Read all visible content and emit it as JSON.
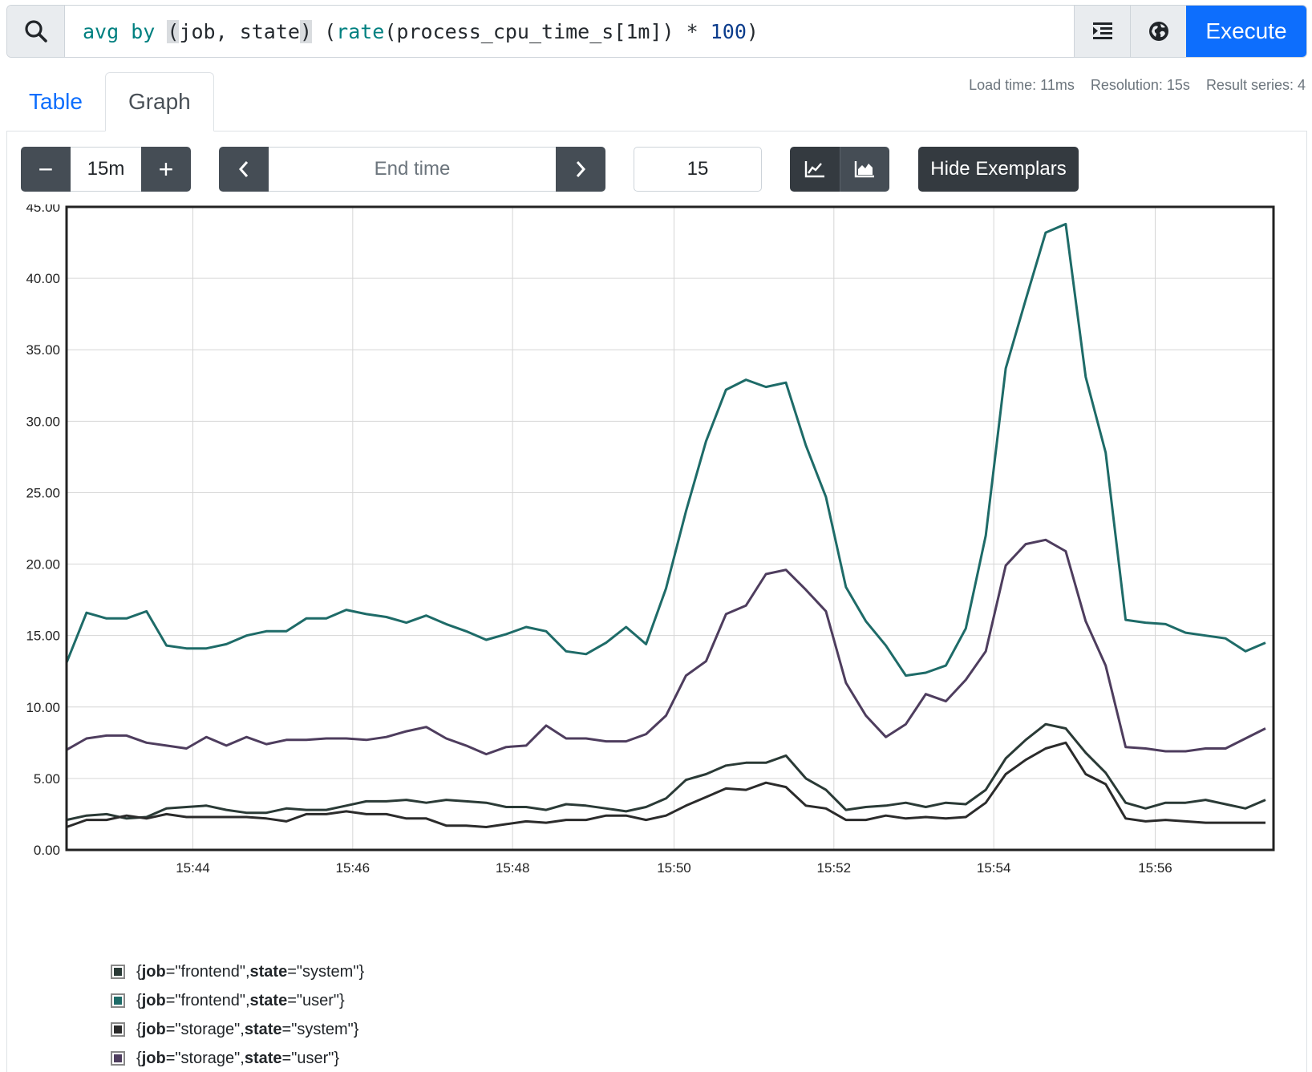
{
  "query": {
    "expr_parts": [
      {
        "t": "avg",
        "c": "tk-kw"
      },
      {
        "t": " ",
        "c": ""
      },
      {
        "t": "by",
        "c": "tk-kw"
      },
      {
        "t": " ",
        "c": ""
      },
      {
        "t": "(",
        "c": "tk-br"
      },
      {
        "t": "job, state",
        "c": "tk-op"
      },
      {
        "t": ")",
        "c": "tk-br"
      },
      {
        "t": " (",
        "c": "tk-op"
      },
      {
        "t": "rate",
        "c": "tk-fn"
      },
      {
        "t": "(process_cpu_time_s[1m]) * ",
        "c": "tk-op"
      },
      {
        "t": "100",
        "c": "tk-num"
      },
      {
        "t": ")",
        "c": "tk-op"
      }
    ],
    "execute_label": "Execute",
    "icons": {
      "search": "search-icon",
      "format": "format-indent-icon",
      "metrics": "metrics-explorer-globe-icon"
    }
  },
  "tabs": {
    "table": "Table",
    "graph": "Graph",
    "active": "graph"
  },
  "stats": {
    "load_time": "Load time: 11ms",
    "resolution": "Resolution: 15s",
    "result_series": "Result series: 4"
  },
  "controls": {
    "range_minus": "−",
    "range_value": "15m",
    "range_plus": "+",
    "end_time_placeholder": "End time",
    "resolution_value": "15",
    "stacked_mode": "lines",
    "exemplars_label": "Hide Exemplars"
  },
  "chart_data": {
    "type": "line",
    "y_ticks": [
      "0.00",
      "5.00",
      "10.00",
      "15.00",
      "20.00",
      "25.00",
      "30.00",
      "35.00",
      "40.00",
      "45.00"
    ],
    "ylim": [
      0,
      45
    ],
    "x_ticks": [
      {
        "label": "15:44",
        "t": 1.58
      },
      {
        "label": "15:46",
        "t": 3.58
      },
      {
        "label": "15:48",
        "t": 5.58
      },
      {
        "label": "15:50",
        "t": 7.6
      },
      {
        "label": "15:52",
        "t": 9.6
      },
      {
        "label": "15:54",
        "t": 11.6
      },
      {
        "label": "15:56",
        "t": 13.62
      }
    ],
    "x_range_minutes": [
      0,
      15.1
    ],
    "x_step_minutes": 0.25,
    "grid": true,
    "legend_position": "bottom",
    "series": [
      {
        "name": "{job=\"frontend\", state=\"system\"}",
        "color": "#2a3a36",
        "values": [
          2.1,
          2.4,
          2.5,
          2.2,
          2.3,
          2.9,
          3.0,
          3.1,
          2.8,
          2.6,
          2.6,
          2.9,
          2.8,
          2.8,
          3.1,
          3.4,
          3.4,
          3.5,
          3.3,
          3.5,
          3.4,
          3.3,
          3.0,
          3.0,
          2.8,
          3.2,
          3.1,
          2.9,
          2.7,
          3.0,
          3.6,
          4.9,
          5.3,
          5.9,
          6.1,
          6.1,
          6.6,
          5.0,
          4.2,
          2.8,
          3.0,
          3.1,
          3.3,
          3.0,
          3.3,
          3.2,
          4.2,
          6.4,
          7.7,
          8.8,
          8.5,
          6.8,
          5.4,
          3.3,
          2.9,
          3.3,
          3.3,
          3.5,
          3.2,
          2.9,
          3.5
        ]
      },
      {
        "name": "{job=\"frontend\", state=\"user\"}",
        "color": "#1e6b68",
        "values": [
          13.1,
          16.6,
          16.2,
          16.2,
          16.7,
          14.3,
          14.1,
          14.1,
          14.4,
          15.0,
          15.3,
          15.3,
          16.2,
          16.2,
          16.8,
          16.5,
          16.3,
          15.9,
          16.4,
          15.8,
          15.3,
          14.7,
          15.1,
          15.6,
          15.3,
          13.9,
          13.7,
          14.5,
          15.6,
          14.4,
          18.3,
          23.7,
          28.6,
          32.2,
          32.9,
          32.4,
          32.7,
          28.3,
          24.7,
          18.4,
          16.0,
          14.3,
          12.2,
          12.4,
          12.9,
          15.5,
          22.0,
          33.7,
          38.5,
          43.2,
          43.8,
          33.1,
          27.8,
          16.1,
          15.9,
          15.8,
          15.2,
          15.0,
          14.8,
          13.9,
          14.5
        ]
      },
      {
        "name": "{job=\"storage\", state=\"system\"}",
        "color": "#2b2b2b",
        "values": [
          1.6,
          2.1,
          2.1,
          2.4,
          2.2,
          2.5,
          2.3,
          2.3,
          2.3,
          2.3,
          2.2,
          2.0,
          2.5,
          2.5,
          2.7,
          2.5,
          2.5,
          2.2,
          2.2,
          1.7,
          1.7,
          1.6,
          1.8,
          2.0,
          1.9,
          2.1,
          2.1,
          2.4,
          2.4,
          2.1,
          2.4,
          3.1,
          3.7,
          4.3,
          4.2,
          4.7,
          4.4,
          3.1,
          2.9,
          2.1,
          2.1,
          2.4,
          2.2,
          2.3,
          2.2,
          2.3,
          3.3,
          5.3,
          6.3,
          7.1,
          7.5,
          5.3,
          4.6,
          2.2,
          2.0,
          2.1,
          2.0,
          1.9,
          1.9,
          1.9,
          1.9
        ]
      },
      {
        "name": "{job=\"storage\", state=\"user\"}",
        "color": "#4e3d5e",
        "values": [
          7.0,
          7.8,
          8.0,
          8.0,
          7.5,
          7.3,
          7.1,
          7.9,
          7.3,
          7.9,
          7.4,
          7.7,
          7.7,
          7.8,
          7.8,
          7.7,
          7.9,
          8.3,
          8.6,
          7.8,
          7.3,
          6.7,
          7.2,
          7.3,
          8.7,
          7.8,
          7.8,
          7.6,
          7.6,
          8.1,
          9.4,
          12.2,
          13.2,
          16.5,
          17.1,
          19.3,
          19.6,
          18.2,
          16.7,
          11.7,
          9.4,
          7.9,
          8.8,
          10.9,
          10.4,
          11.9,
          13.9,
          19.9,
          21.4,
          21.7,
          20.9,
          16.0,
          12.9,
          7.2,
          7.1,
          6.9,
          6.9,
          7.1,
          7.1,
          7.8,
          8.5
        ]
      }
    ]
  },
  "legend": [
    {
      "key": "job",
      "eq": "=\"frontend\", ",
      "key2": "state",
      "val": "=\"system\"}",
      "color": "#2a3a36"
    },
    {
      "key": "job",
      "eq": "=\"frontend\", ",
      "key2": "state",
      "val": "=\"user\"}",
      "color": "#1e6b68"
    },
    {
      "key": "job",
      "eq": "=\"storage\", ",
      "key2": "state",
      "val": "=\"system\"}",
      "color": "#2b2b2b"
    },
    {
      "key": "job",
      "eq": "=\"storage\", ",
      "key2": "state",
      "val": "=\"user\"}",
      "color": "#4e3d5e"
    }
  ]
}
